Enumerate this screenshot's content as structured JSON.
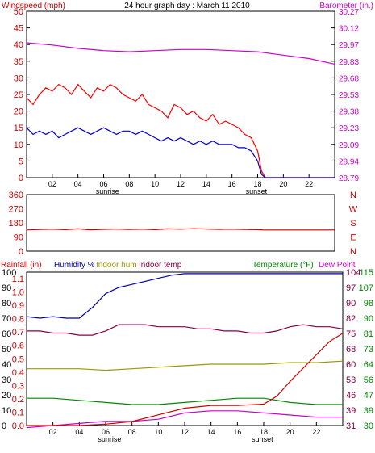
{
  "colors": {
    "wind": "#cc0000",
    "gust": "#ff0000",
    "avg": "#0000cc",
    "baro": "#cc00cc",
    "dir": "#cc0000",
    "humidity": "#0000aa",
    "indoor_hum": "#999900",
    "indoor_temp": "#880044",
    "temperature": "#008800",
    "dewpoint": "#cc00cc",
    "rainfall": "#cc0000",
    "rain_label": "#cc0000",
    "green_label": "#008800"
  },
  "chart_data": [
    {
      "type": "line",
      "title": "24 hour graph day : March 11 2010",
      "ylabel_left": "Windspeed (mph)",
      "ylabel_right": "Barometer (in.)",
      "left_ticks": [
        "50",
        "45",
        "40",
        "35",
        "30",
        "25",
        "20",
        "15",
        "10",
        "5",
        "0"
      ],
      "right_ticks": [
        "30.27",
        "30.12",
        "29.97",
        "29.83",
        "29.68",
        "29.53",
        "29.38",
        "29.23",
        "29.09",
        "28.94",
        "28.79"
      ],
      "x_ticks": [
        "02",
        "04",
        "06",
        "08",
        "10",
        "12",
        "14",
        "16",
        "18",
        "20",
        "22"
      ],
      "sunrise_label": "sunrise",
      "sunset_label": "sunset",
      "ylim_left": [
        0,
        50
      ],
      "ylim_right": [
        28.79,
        30.27
      ],
      "series": [
        {
          "key": "gust",
          "x": [
            0,
            0.5,
            1,
            1.5,
            2,
            2.5,
            3,
            3.5,
            4,
            4.5,
            5,
            5.5,
            6,
            6.5,
            7,
            7.5,
            8,
            8.5,
            9,
            9.5,
            10,
            10.5,
            11,
            11.5,
            12,
            12.5,
            13,
            13.5,
            14,
            14.5,
            15,
            15.5,
            16,
            16.5,
            17,
            17.5,
            18,
            18.3,
            18.6,
            19,
            20,
            21,
            22,
            23,
            24
          ],
          "values": [
            24,
            22,
            25,
            27,
            26,
            28,
            27,
            25,
            28,
            26,
            24,
            27,
            26,
            28,
            27,
            25,
            24,
            23,
            25,
            22,
            21,
            20,
            18,
            22,
            21,
            19,
            20,
            18,
            17,
            19,
            16,
            17,
            16,
            15,
            13,
            12,
            8,
            2,
            0,
            0,
            0,
            0,
            0,
            0,
            0
          ]
        },
        {
          "key": "avg",
          "x": [
            0,
            0.5,
            1,
            1.5,
            2,
            2.5,
            3,
            3.5,
            4,
            4.5,
            5,
            5.5,
            6,
            6.5,
            7,
            7.5,
            8,
            8.5,
            9,
            9.5,
            10,
            10.5,
            11,
            11.5,
            12,
            12.5,
            13,
            13.5,
            14,
            14.5,
            15,
            15.5,
            16,
            16.5,
            17,
            17.5,
            18,
            18.3,
            18.6,
            19,
            20,
            21,
            22,
            23,
            24
          ],
          "values": [
            15,
            13,
            14,
            13,
            14,
            12,
            13,
            14,
            15,
            14,
            13,
            14,
            15,
            14,
            13,
            14,
            14,
            13,
            14,
            13,
            12,
            11,
            12,
            11,
            12,
            11,
            10,
            11,
            10,
            11,
            10,
            10,
            10,
            9,
            9,
            8,
            5,
            1,
            0,
            0,
            0,
            0,
            0,
            0,
            0
          ]
        },
        {
          "key": "baro",
          "x": [
            0,
            2,
            4,
            6,
            8,
            10,
            12,
            14,
            16,
            18,
            20,
            22,
            24
          ],
          "values": [
            29.99,
            29.97,
            29.94,
            29.92,
            29.91,
            29.92,
            29.93,
            29.93,
            29.92,
            29.91,
            29.88,
            29.85,
            29.8
          ]
        }
      ]
    },
    {
      "type": "line",
      "ylabel_right_letters": [
        "N",
        "W",
        "S",
        "E",
        "N"
      ],
      "left_ticks": [
        "360",
        "270",
        "180",
        "90",
        "0"
      ],
      "ylim": [
        0,
        360
      ],
      "series": [
        {
          "key": "wind_direction",
          "x": [
            0,
            1,
            2,
            3,
            4,
            5,
            6,
            7,
            8,
            9,
            10,
            11,
            12,
            13,
            14,
            15,
            16,
            17,
            18,
            18.5,
            19,
            20,
            21,
            22,
            23,
            24
          ],
          "values": [
            135,
            138,
            140,
            137,
            142,
            136,
            139,
            141,
            138,
            140,
            137,
            142,
            140,
            143,
            141,
            139,
            140,
            138,
            137,
            135,
            135,
            135,
            135,
            135,
            135,
            135
          ]
        }
      ]
    },
    {
      "type": "line",
      "legend": {
        "rainfall": "Rainfall (in)",
        "humidity": "Humidity %",
        "indoor_hum": "Indoor hum",
        "indoor_temp": "Indoor temp",
        "temperature": "Temperature (°F)",
        "dewpoint": "Dew Point"
      },
      "left_ticks_hum": [
        "100",
        "90",
        "80",
        "70",
        "60",
        "50",
        "40",
        "30",
        "20",
        "10",
        "0"
      ],
      "left_ticks_rain": [
        "1.1",
        "1.0",
        "0.9",
        "0.8",
        "0.7",
        "0.6",
        "0.5",
        "0.4",
        "0.3",
        "0.2",
        "0.1",
        "0.0"
      ],
      "right_ticks_inner": [
        "104",
        "97",
        "90",
        "82",
        "75",
        "68",
        "60",
        "53",
        "46",
        "39",
        "31"
      ],
      "right_ticks_outer": [
        "115",
        "107",
        "98",
        "90",
        "81",
        "73",
        "64",
        "56",
        "47",
        "39",
        "30"
      ],
      "x_ticks": [
        "02",
        "04",
        "06",
        "08",
        "10",
        "12",
        "14",
        "16",
        "18",
        "20",
        "22"
      ],
      "sunrise_label": "sunrise",
      "sunset_label": "sunset",
      "series": [
        {
          "key": "humidity",
          "x": [
            0,
            1,
            2,
            3,
            4,
            5,
            6,
            7,
            8,
            9,
            10,
            11,
            12,
            13,
            14,
            15,
            16,
            17,
            18,
            19,
            20,
            21,
            22,
            23,
            24
          ],
          "values": [
            71,
            70,
            71,
            70,
            70,
            77,
            86,
            90,
            92,
            94,
            96,
            98,
            99,
            99,
            99,
            99,
            99,
            99,
            99,
            99,
            99,
            99,
            99,
            99,
            99
          ]
        },
        {
          "key": "indoor_hum",
          "x": [
            0,
            2,
            4,
            6,
            8,
            10,
            12,
            14,
            16,
            18,
            20,
            22,
            24
          ],
          "values": [
            37,
            37,
            37,
            36,
            37,
            38,
            39,
            40,
            40,
            40,
            41,
            41,
            42
          ]
        },
        {
          "key": "indoor_temp",
          "x": [
            0,
            1,
            2,
            3,
            4,
            5,
            6,
            7,
            8,
            9,
            10,
            11,
            12,
            13,
            14,
            15,
            16,
            17,
            18,
            19,
            20,
            21,
            22,
            23,
            24
          ],
          "values": [
            76,
            76,
            75,
            75,
            74,
            74,
            76,
            79,
            79,
            79,
            78,
            78,
            78,
            77,
            77,
            76,
            76,
            75,
            75,
            76,
            78,
            79,
            78,
            78,
            77
          ]
        },
        {
          "key": "temperature",
          "x": [
            0,
            2,
            4,
            6,
            8,
            10,
            12,
            14,
            16,
            18,
            20,
            22,
            24
          ],
          "values": [
            44,
            44,
            43,
            42,
            41,
            41,
            42,
            43,
            44,
            44,
            42,
            41,
            41
          ]
        },
        {
          "key": "dewpoint",
          "x": [
            0,
            2,
            4,
            6,
            8,
            10,
            12,
            14,
            16,
            18,
            20,
            22,
            24
          ],
          "values": [
            30,
            31,
            32,
            33,
            33,
            34,
            37,
            38,
            38,
            37,
            36,
            35,
            35
          ]
        },
        {
          "key": "rainfall",
          "x": [
            0,
            2,
            4,
            6,
            8,
            10,
            12,
            14,
            16,
            18,
            19,
            20,
            21,
            22,
            23,
            24
          ],
          "values": [
            0.0,
            0.0,
            0.0,
            0.01,
            0.03,
            0.08,
            0.13,
            0.15,
            0.15,
            0.16,
            0.22,
            0.33,
            0.43,
            0.53,
            0.63,
            0.69
          ]
        }
      ]
    }
  ]
}
